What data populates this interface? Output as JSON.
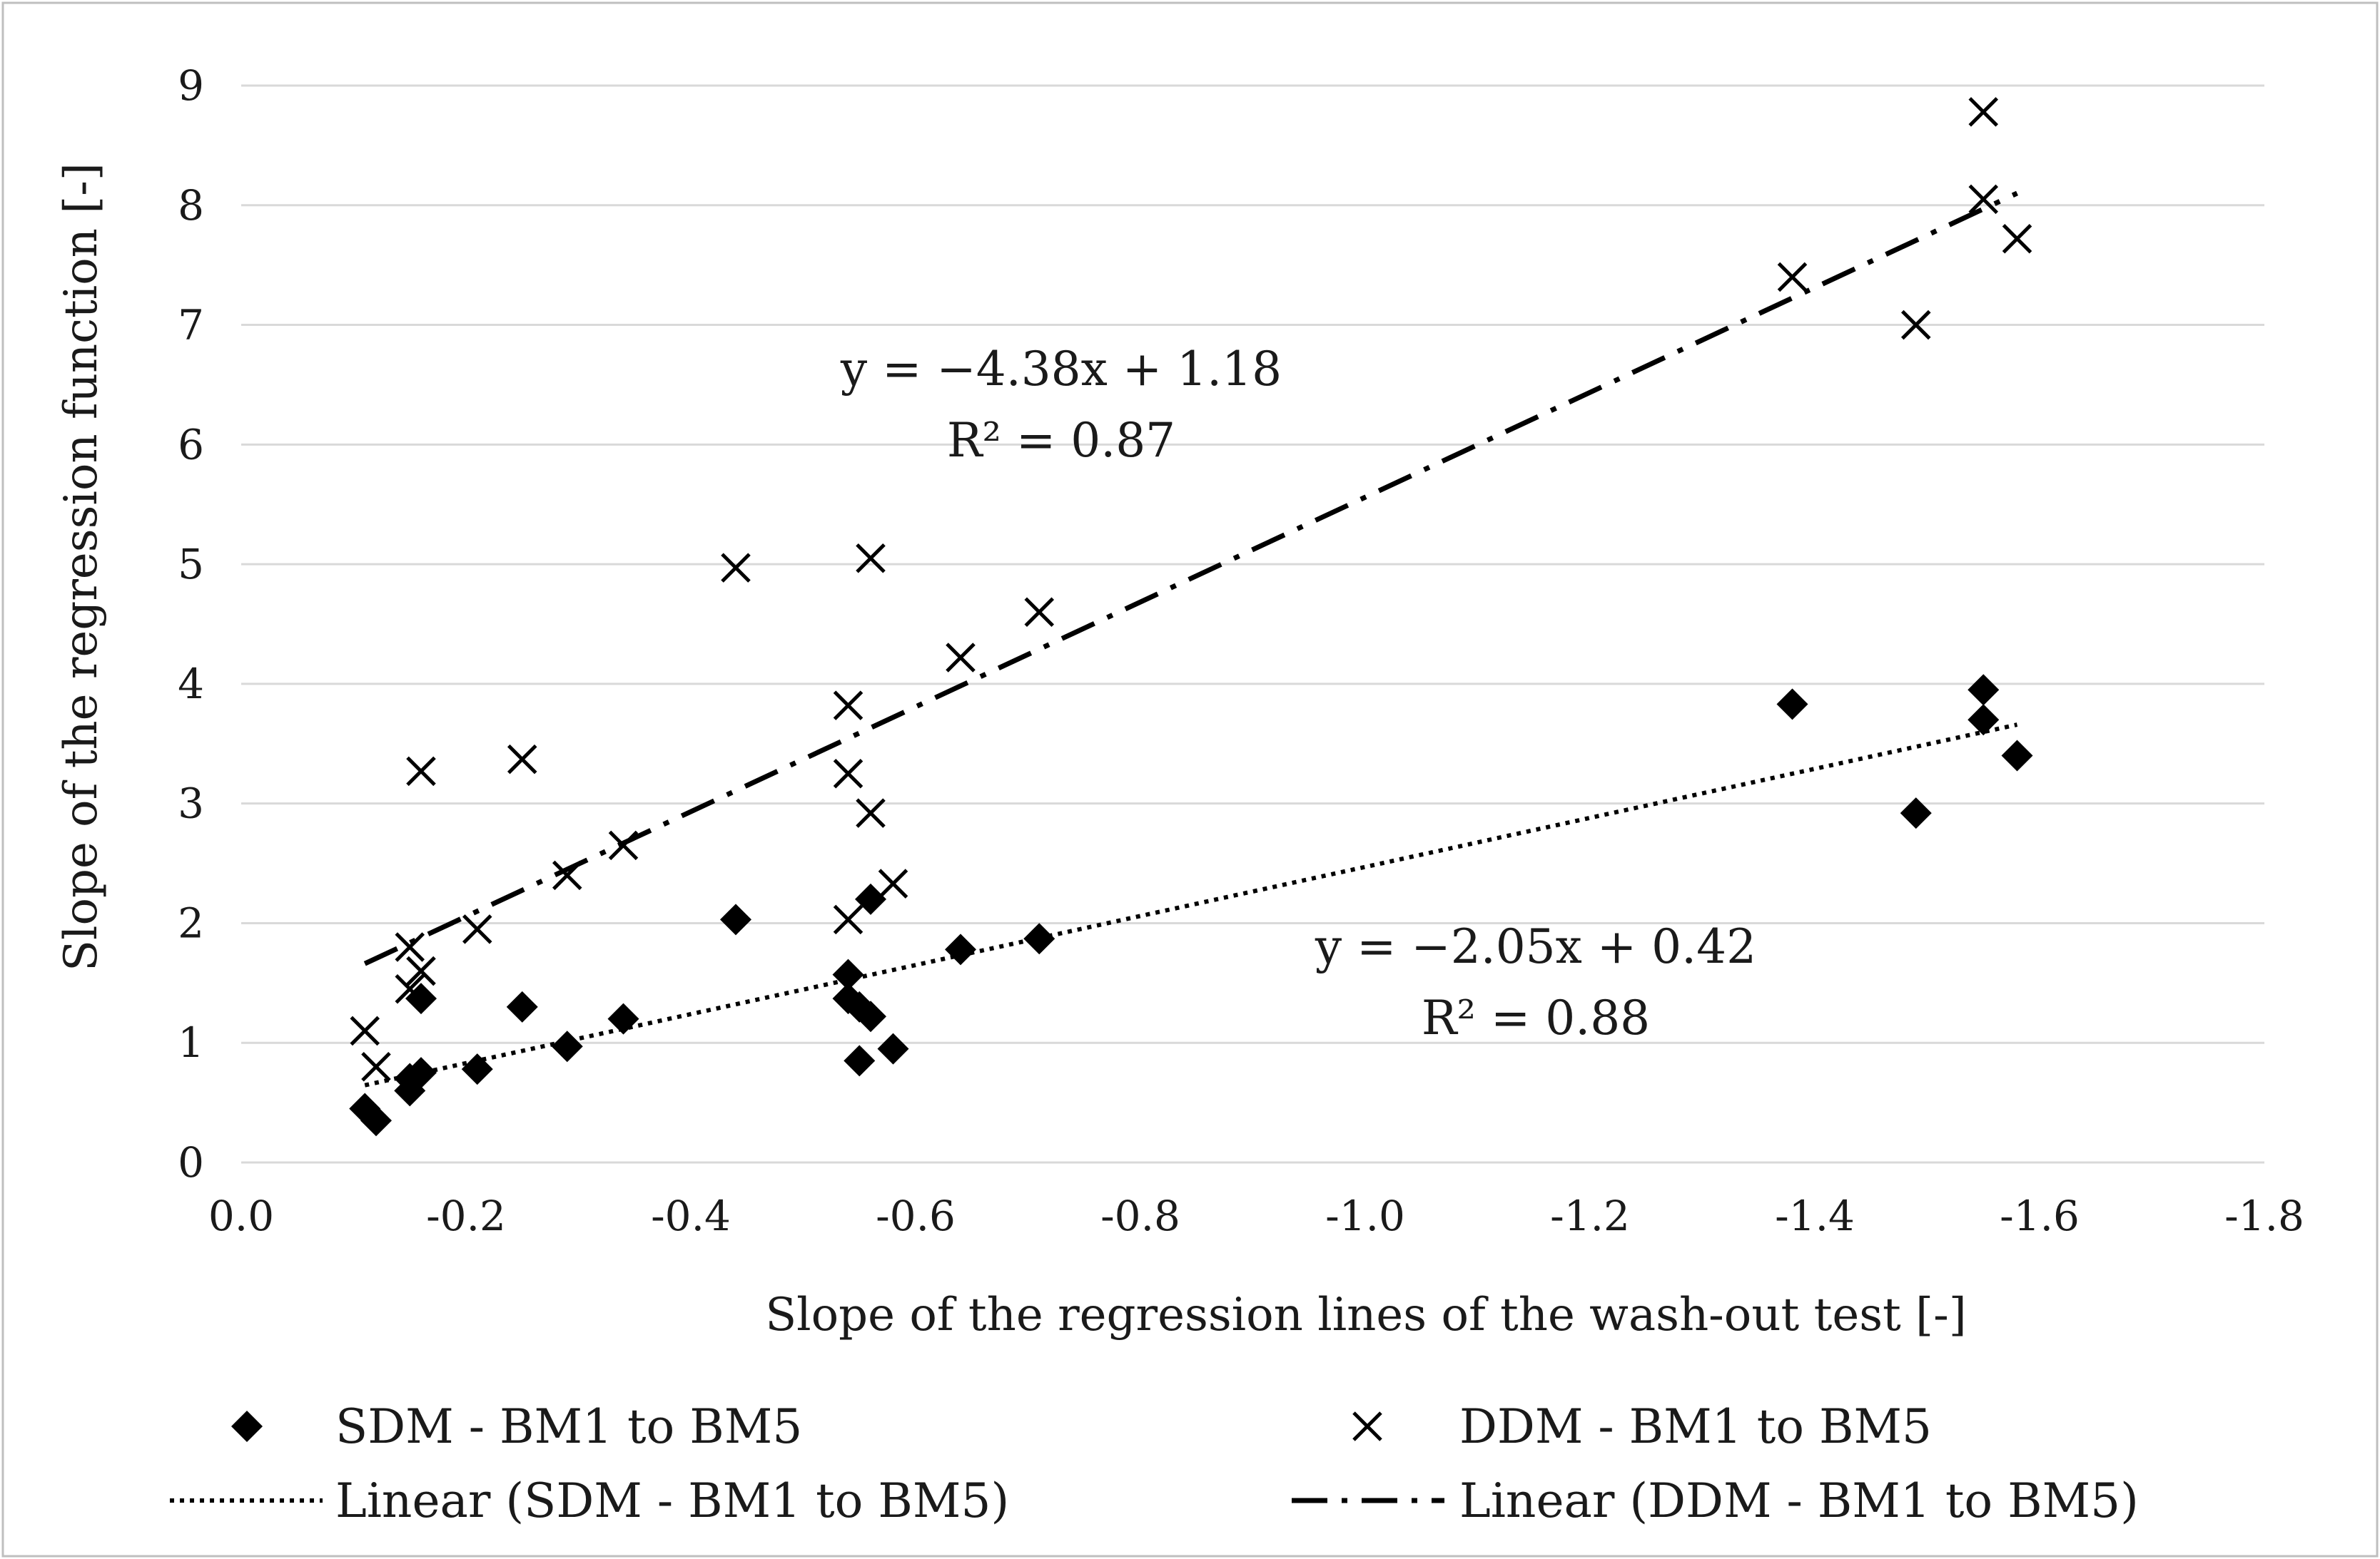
{
  "chart_data": {
    "type": "scatter",
    "title": "",
    "xlabel": "Slope of the regression lines of the wash-out test [-]",
    "ylabel": "Slope of the regression function [-]",
    "xlim": [
      0.0,
      -1.8
    ],
    "ylim": [
      0,
      9
    ],
    "x_ticks": [
      0.0,
      -0.2,
      -0.4,
      -0.6,
      -0.8,
      -1.0,
      -1.2,
      -1.4,
      -1.6,
      -1.8
    ],
    "x_tick_labels": [
      "0.0",
      "-0.2",
      "-0.4",
      "-0.6",
      "-0.8",
      "-1.0",
      "-1.2",
      "-1.4",
      "-1.6",
      "-1.8"
    ],
    "y_ticks": [
      0,
      1,
      2,
      3,
      4,
      5,
      6,
      7,
      8,
      9
    ],
    "y_tick_labels": [
      "0",
      "1",
      "2",
      "3",
      "4",
      "5",
      "6",
      "7",
      "8",
      "9"
    ],
    "grid": "horizontal",
    "legend_position": "bottom",
    "series": [
      {
        "name": "SDM - BM1 to BM5",
        "marker": "diamond",
        "color": "#000000",
        "points": [
          [
            -0.11,
            0.45
          ],
          [
            -0.12,
            0.35
          ],
          [
            -0.15,
            0.6
          ],
          [
            -0.15,
            0.7
          ],
          [
            -0.16,
            0.75
          ],
          [
            -0.16,
            1.37
          ],
          [
            -0.21,
            0.78
          ],
          [
            -0.25,
            1.3
          ],
          [
            -0.29,
            0.97
          ],
          [
            -0.34,
            1.2
          ],
          [
            -0.44,
            2.03
          ],
          [
            -0.54,
            1.57
          ],
          [
            -0.54,
            1.37
          ],
          [
            -0.55,
            0.85
          ],
          [
            -0.55,
            1.3
          ],
          [
            -0.56,
            1.22
          ],
          [
            -0.56,
            2.2
          ],
          [
            -0.58,
            0.95
          ],
          [
            -0.64,
            1.78
          ],
          [
            -0.71,
            1.87
          ],
          [
            -1.38,
            3.83
          ],
          [
            -1.49,
            2.92
          ],
          [
            -1.55,
            3.95
          ],
          [
            -1.55,
            3.7
          ],
          [
            -1.58,
            3.4
          ]
        ]
      },
      {
        "name": "DDM - BM1 to BM5",
        "marker": "x",
        "color": "#000000",
        "points": [
          [
            -0.11,
            1.1
          ],
          [
            -0.12,
            0.8
          ],
          [
            -0.15,
            1.45
          ],
          [
            -0.15,
            1.8
          ],
          [
            -0.16,
            1.6
          ],
          [
            -0.16,
            3.27
          ],
          [
            -0.21,
            1.95
          ],
          [
            -0.25,
            3.37
          ],
          [
            -0.29,
            2.4
          ],
          [
            -0.34,
            2.65
          ],
          [
            -0.44,
            4.97
          ],
          [
            -0.54,
            3.82
          ],
          [
            -0.54,
            3.25
          ],
          [
            -0.54,
            2.03
          ],
          [
            -0.56,
            2.92
          ],
          [
            -0.56,
            5.05
          ],
          [
            -0.58,
            2.33
          ],
          [
            -0.64,
            4.22
          ],
          [
            -0.71,
            4.6
          ],
          [
            -1.38,
            7.4
          ],
          [
            -1.49,
            7.0
          ],
          [
            -1.55,
            8.78
          ],
          [
            -1.55,
            8.05
          ],
          [
            -1.58,
            7.72
          ]
        ]
      }
    ],
    "trendlines": [
      {
        "name": "Linear (SDM - BM1 to BM5)",
        "style": "dotted",
        "slope": -2.05,
        "intercept": 0.42,
        "x_range": [
          -0.11,
          -1.58
        ],
        "equation": "y = −2.05x + 0.42",
        "r2": "R² = 0.88"
      },
      {
        "name": "Linear (DDM - BM1 to BM5)",
        "style": "dash-dot",
        "slope": -4.38,
        "intercept": 1.18,
        "x_range": [
          -0.11,
          -1.58
        ],
        "equation": "y = −4.38x + 1.18",
        "r2": "R² = 0.87"
      }
    ]
  }
}
